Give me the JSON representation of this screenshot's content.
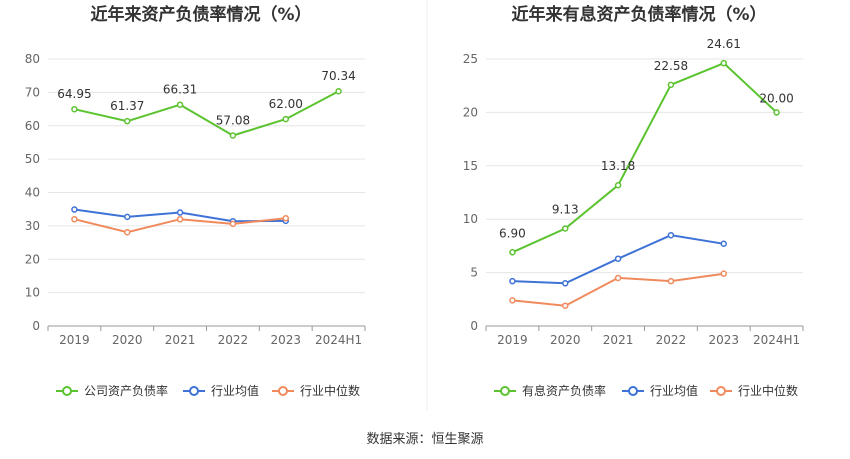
{
  "source_text": "数据来源：恒生聚源",
  "chart_data": [
    {
      "type": "line",
      "title": "近年来资产负债率情况（%）",
      "categories": [
        "2019",
        "2020",
        "2021",
        "2022",
        "2023",
        "2024H1"
      ],
      "ylim": [
        0,
        80
      ],
      "yticks": [
        0,
        10,
        20,
        30,
        40,
        50,
        60,
        70,
        80
      ],
      "grid": true,
      "legend_position": "bottom",
      "series": [
        {
          "name": "公司资产负债率",
          "color": "#5cc330",
          "values": [
            64.95,
            61.37,
            66.31,
            57.08,
            62.0,
            70.34
          ],
          "labels": [
            "64.95",
            "61.37",
            "66.31",
            "57.08",
            "62.00",
            "70.34"
          ]
        },
        {
          "name": "行业均值",
          "color": "#3e72d6",
          "values": [
            34.9,
            32.7,
            34.0,
            31.4,
            31.5,
            null
          ]
        },
        {
          "name": "行业中位数",
          "color": "#f08a5d",
          "values": [
            32.0,
            28.1,
            32.0,
            30.6,
            32.3,
            null
          ]
        }
      ]
    },
    {
      "type": "line",
      "title": "近年来有息资产负债率情况（%）",
      "categories": [
        "2019",
        "2020",
        "2021",
        "2022",
        "2023",
        "2024H1"
      ],
      "ylim": [
        0,
        25
      ],
      "yticks": [
        0,
        5,
        10,
        15,
        20,
        25
      ],
      "grid": true,
      "legend_position": "bottom",
      "series": [
        {
          "name": "有息资产负债率",
          "color": "#5cc330",
          "values": [
            6.9,
            9.13,
            13.18,
            22.58,
            24.61,
            20.0
          ],
          "labels": [
            "6.90",
            "9.13",
            "13.18",
            "22.58",
            "24.61",
            "20.00"
          ]
        },
        {
          "name": "行业均值",
          "color": "#3e72d6",
          "values": [
            4.2,
            4.0,
            6.3,
            8.5,
            7.7,
            null
          ]
        },
        {
          "name": "行业中位数",
          "color": "#f08a5d",
          "values": [
            2.4,
            1.9,
            4.5,
            4.2,
            4.9,
            null
          ]
        }
      ]
    }
  ]
}
